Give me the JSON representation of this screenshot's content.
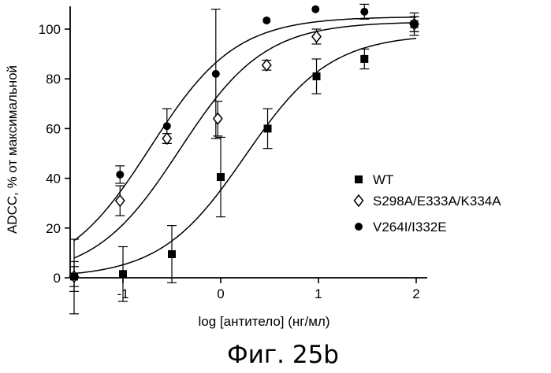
{
  "chart_data": {
    "type": "scatter",
    "caption": "Фиг. 25b",
    "xlabel": "log [антитело] (нг/мл)",
    "ylabel": "ADCC, % от максимальной",
    "xlim": [
      -1.55,
      2.1
    ],
    "ylim": [
      0,
      110
    ],
    "xticks": [
      -1,
      0,
      1,
      2
    ],
    "xtick_labels": [
      "-1",
      "0",
      "1",
      "2"
    ],
    "yticks": [
      0,
      20,
      40,
      60,
      80,
      100
    ],
    "ytick_labels": [
      "0",
      "20",
      "40",
      "60",
      "80",
      "100"
    ],
    "grid": false,
    "legend_position": "right",
    "series": [
      {
        "name": "WT",
        "marker": "square",
        "x": [
          -1.5,
          -1.0,
          -0.5,
          0.0,
          0.48,
          0.98,
          1.47,
          1.98
        ],
        "y": [
          0.5,
          1.5,
          9.5,
          40.5,
          60,
          81,
          88,
          102
        ],
        "err": [
          15,
          11,
          11.5,
          16,
          8,
          7,
          4,
          4.5
        ],
        "fit": {
          "bottom": 0,
          "top": 98,
          "ec50_log": 0.25,
          "hill": 1.0
        }
      },
      {
        "name": "S298A/E333A/K334A",
        "marker": "diamond-open",
        "x": [
          -1.5,
          -1.03,
          -0.55,
          -0.03,
          0.47,
          0.98,
          1.98
        ],
        "y": [
          0.5,
          31,
          56,
          64,
          85.5,
          97,
          102
        ],
        "err": [
          6,
          6,
          2,
          7,
          2,
          3,
          3
        ],
        "fit": {
          "bottom": 0,
          "top": 103,
          "ec50_log": -0.42,
          "hill": 1.0
        }
      },
      {
        "name": "V264I/I332E",
        "marker": "circle",
        "x": [
          -1.5,
          -1.03,
          -0.55,
          -0.05,
          0.47,
          0.97,
          1.47,
          1.98
        ],
        "y": [
          0.5,
          41.5,
          61,
          82,
          103.5,
          108,
          107,
          102
        ],
        "err": [
          4,
          3.5,
          7,
          26,
          0,
          0,
          3,
          3
        ],
        "fit": {
          "bottom": 0,
          "top": 105,
          "ec50_log": -0.72,
          "hill": 1.0
        }
      }
    ]
  }
}
